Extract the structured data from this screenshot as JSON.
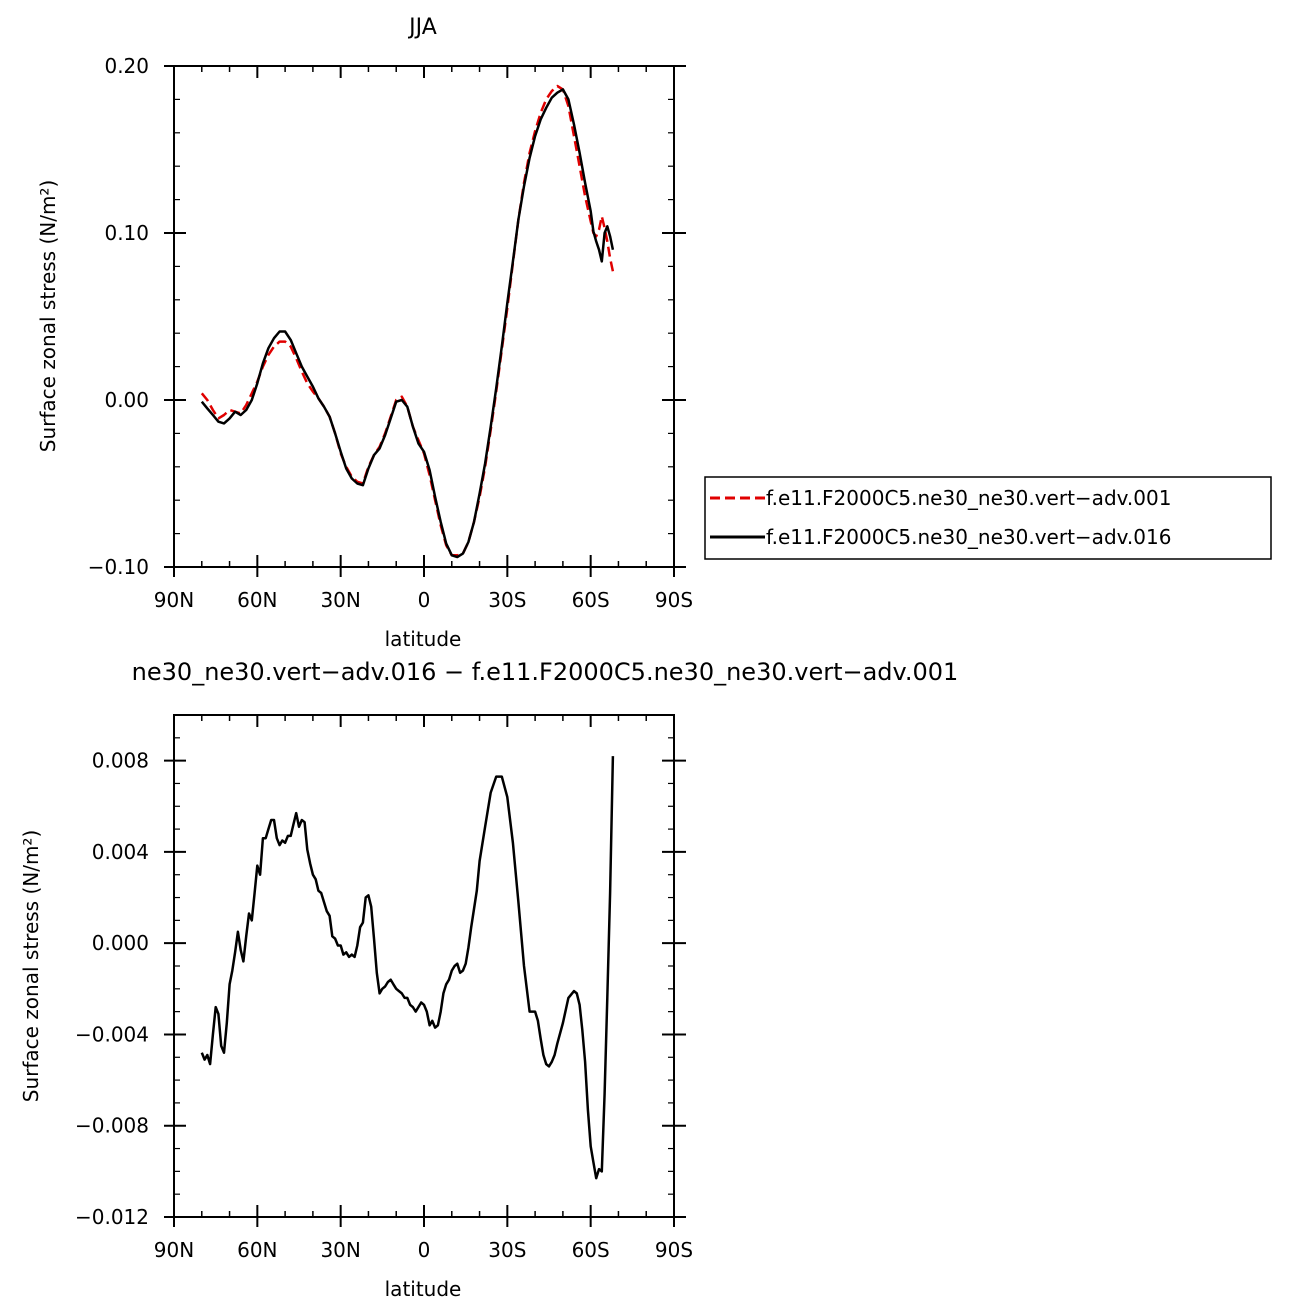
{
  "chart_data": [
    {
      "type": "line",
      "title": "JJA",
      "xlabel": "latitude",
      "ylabel": "Surface zonal stress (N/m²)",
      "xlim": [
        90,
        -90
      ],
      "ylim": [
        -0.1,
        0.2
      ],
      "x_ticks": [
        90,
        60,
        30,
        0,
        -30,
        -60,
        -90
      ],
      "x_tick_labels": [
        "90N",
        "60N",
        "30N",
        "0",
        "30S",
        "60S",
        "90S"
      ],
      "y_ticks": [
        -0.1,
        0.0,
        0.1,
        0.2
      ],
      "y_tick_labels": [
        "−0.10",
        "0.00",
        "0.10",
        "0.20"
      ],
      "legend_position": "right",
      "series": [
        {
          "name": "f.e11.F2000C5.ne30_ne30.vert−adv.001",
          "color": "#e00000",
          "dash": "dashed",
          "x": [
            80,
            78,
            76,
            74,
            72,
            70,
            68,
            66,
            64,
            62,
            60,
            58,
            56,
            54,
            52,
            50,
            48,
            46,
            44,
            42,
            40,
            38,
            36,
            34,
            32,
            30,
            28,
            26,
            24,
            22,
            20,
            18,
            16,
            14,
            12,
            10,
            8,
            6,
            4,
            2,
            0,
            -2,
            -4,
            -6,
            -8,
            -10,
            -12,
            -14,
            -16,
            -18,
            -20,
            -22,
            -24,
            -26,
            -28,
            -30,
            -32,
            -34,
            -36,
            -38,
            -40,
            -42,
            -44,
            -46,
            -48,
            -50,
            -52,
            -54,
            -56,
            -58,
            -60,
            -61,
            -62,
            -63,
            -64,
            -65,
            -66,
            -67,
            -68
          ],
          "values": [
            0.004,
            0.0,
            -0.006,
            -0.011,
            -0.009,
            -0.006,
            -0.007,
            -0.008,
            -0.003,
            0.004,
            0.011,
            0.02,
            0.027,
            0.032,
            0.035,
            0.035,
            0.032,
            0.025,
            0.017,
            0.01,
            0.005,
            0.001,
            -0.004,
            -0.01,
            -0.02,
            -0.032,
            -0.04,
            -0.046,
            -0.049,
            -0.05,
            -0.04,
            -0.033,
            -0.028,
            -0.02,
            -0.01,
            0.0,
            0.002,
            -0.004,
            -0.016,
            -0.024,
            -0.032,
            -0.045,
            -0.06,
            -0.075,
            -0.087,
            -0.093,
            -0.093,
            -0.092,
            -0.085,
            -0.073,
            -0.058,
            -0.04,
            -0.018,
            0.005,
            0.03,
            0.055,
            0.082,
            0.108,
            0.13,
            0.148,
            0.161,
            0.172,
            0.18,
            0.185,
            0.188,
            0.186,
            0.176,
            0.158,
            0.14,
            0.122,
            0.107,
            0.1,
            0.098,
            0.102,
            0.11,
            0.103,
            0.095,
            0.085,
            0.077
          ]
        },
        {
          "name": "f.e11.F2000C5.ne30_ne30.vert−adv.016",
          "color": "#000000",
          "dash": "solid",
          "x": [
            80,
            78,
            76,
            74,
            72,
            70,
            68,
            66,
            64,
            62,
            60,
            58,
            56,
            54,
            52,
            50,
            48,
            46,
            44,
            42,
            40,
            38,
            36,
            34,
            32,
            30,
            28,
            26,
            24,
            22,
            20,
            18,
            16,
            14,
            12,
            10,
            8,
            6,
            4,
            2,
            0,
            -2,
            -4,
            -6,
            -8,
            -10,
            -12,
            -14,
            -16,
            -18,
            -20,
            -22,
            -24,
            -26,
            -28,
            -30,
            -32,
            -34,
            -36,
            -38,
            -40,
            -42,
            -44,
            -46,
            -48,
            -50,
            -52,
            -54,
            -56,
            -58,
            -60,
            -61,
            -62,
            -63,
            -64,
            -65,
            -66,
            -67,
            -68
          ],
          "values": [
            -0.001,
            -0.005,
            -0.009,
            -0.013,
            -0.014,
            -0.011,
            -0.007,
            -0.009,
            -0.006,
            0.0,
            0.01,
            0.022,
            0.031,
            0.037,
            0.041,
            0.041,
            0.036,
            0.028,
            0.02,
            0.014,
            0.008,
            0.001,
            -0.004,
            -0.01,
            -0.02,
            -0.031,
            -0.041,
            -0.047,
            -0.05,
            -0.051,
            -0.041,
            -0.033,
            -0.029,
            -0.021,
            -0.011,
            -0.001,
            0.0,
            -0.004,
            -0.016,
            -0.026,
            -0.031,
            -0.042,
            -0.058,
            -0.073,
            -0.086,
            -0.093,
            -0.094,
            -0.092,
            -0.085,
            -0.073,
            -0.056,
            -0.038,
            -0.016,
            0.007,
            0.032,
            0.058,
            0.083,
            0.108,
            0.128,
            0.145,
            0.158,
            0.168,
            0.175,
            0.181,
            0.184,
            0.186,
            0.18,
            0.165,
            0.148,
            0.13,
            0.113,
            0.101,
            0.095,
            0.09,
            0.083,
            0.1,
            0.104,
            0.098,
            0.09
          ]
        }
      ]
    },
    {
      "type": "line",
      "title": "ne30_ne30.vert−adv.016 − f.e11.F2000C5.ne30_ne30.vert−adv.001",
      "xlabel": "latitude",
      "ylabel": "Surface zonal stress (N/m²)",
      "xlim": [
        90,
        -90
      ],
      "ylim": [
        -0.012,
        0.01
      ],
      "x_ticks": [
        90,
        60,
        30,
        0,
        -30,
        -60,
        -90
      ],
      "x_tick_labels": [
        "90N",
        "60N",
        "30N",
        "0",
        "30S",
        "60S",
        "90S"
      ],
      "y_ticks": [
        -0.012,
        -0.008,
        -0.004,
        0.0,
        0.004,
        0.008
      ],
      "y_tick_labels": [
        "−0.012",
        "−0.008",
        "−0.004",
        "0.000",
        "0.004",
        "0.008"
      ],
      "series": [
        {
          "color": "#000000",
          "dash": "solid",
          "x": [
            80,
            79,
            78,
            77,
            76,
            75,
            74,
            73,
            72,
            71,
            70,
            69,
            68,
            67,
            66,
            65,
            64,
            63,
            62,
            61,
            60,
            59,
            58,
            57,
            56,
            55,
            54,
            53,
            52,
            51,
            50,
            49,
            48,
            47,
            46,
            45,
            44,
            43,
            42,
            41,
            40,
            39,
            38,
            37,
            36,
            35,
            34,
            33,
            32,
            31,
            30,
            29,
            28,
            27,
            26,
            25,
            24,
            23,
            22,
            21,
            20,
            19,
            18,
            17,
            16,
            15,
            14,
            13,
            12,
            11,
            10,
            9,
            8,
            7,
            6,
            5,
            4,
            3,
            2,
            1,
            0,
            -1,
            -2,
            -3,
            -4,
            -5,
            -6,
            -7,
            -8,
            -9,
            -10,
            -11,
            -12,
            -13,
            -14,
            -15,
            -16,
            -17,
            -18,
            -19,
            -20,
            -22,
            -24,
            -26,
            -28,
            -30,
            -32,
            -34,
            -36,
            -38,
            -40,
            -41,
            -42,
            -43,
            -44,
            -45,
            -46,
            -47,
            -48,
            -50,
            -52,
            -54,
            -55,
            -56,
            -57,
            -58,
            -59,
            -60,
            -61,
            -62,
            -63,
            -64,
            -65,
            -66,
            -67,
            -68
          ],
          "values": [
            -0.0048,
            -0.0051,
            -0.0049,
            -0.0053,
            -0.004,
            -0.0028,
            -0.0031,
            -0.0045,
            -0.0048,
            -0.0035,
            -0.0018,
            -0.0012,
            -0.0004,
            0.0005,
            -0.0003,
            -0.0008,
            0.0003,
            0.0013,
            0.001,
            0.0022,
            0.0034,
            0.003,
            0.0046,
            0.0046,
            0.005,
            0.0054,
            0.0054,
            0.0046,
            0.0043,
            0.0045,
            0.0044,
            0.0047,
            0.0047,
            0.0052,
            0.0057,
            0.0051,
            0.0054,
            0.0053,
            0.0041,
            0.0035,
            0.003,
            0.0028,
            0.0023,
            0.0022,
            0.0018,
            0.0014,
            0.0012,
            0.0003,
            0.0002,
            -0.0001,
            -0.0001,
            -0.0005,
            -0.0004,
            -0.0006,
            -0.0005,
            -0.0006,
            -0.0001,
            0.0007,
            0.0009,
            0.002,
            0.0021,
            0.0016,
            0.0002,
            -0.0013,
            -0.0022,
            -0.002,
            -0.0019,
            -0.0017,
            -0.0016,
            -0.0018,
            -0.002,
            -0.0021,
            -0.0022,
            -0.0024,
            -0.0024,
            -0.0027,
            -0.0028,
            -0.003,
            -0.0028,
            -0.0026,
            -0.0027,
            -0.003,
            -0.0036,
            -0.0034,
            -0.0037,
            -0.0036,
            -0.003,
            -0.0022,
            -0.0018,
            -0.0016,
            -0.0012,
            -0.001,
            -0.0009,
            -0.0013,
            -0.0012,
            -0.0009,
            -0.0002,
            0.0007,
            0.0015,
            0.0023,
            0.0036,
            0.0051,
            0.0066,
            0.0073,
            0.0073,
            0.0064,
            0.0044,
            0.0018,
            -0.001,
            -0.003,
            -0.003,
            -0.0034,
            -0.0042,
            -0.0049,
            -0.0053,
            -0.0054,
            -0.0052,
            -0.0049,
            -0.0044,
            -0.0035,
            -0.0024,
            -0.0021,
            -0.0022,
            -0.0027,
            -0.0038,
            -0.0052,
            -0.0073,
            -0.0089,
            -0.0096,
            -0.0103,
            -0.0099,
            -0.01,
            -0.0066,
            -0.0024,
            0.0022,
            0.0082
          ]
        }
      ]
    }
  ]
}
